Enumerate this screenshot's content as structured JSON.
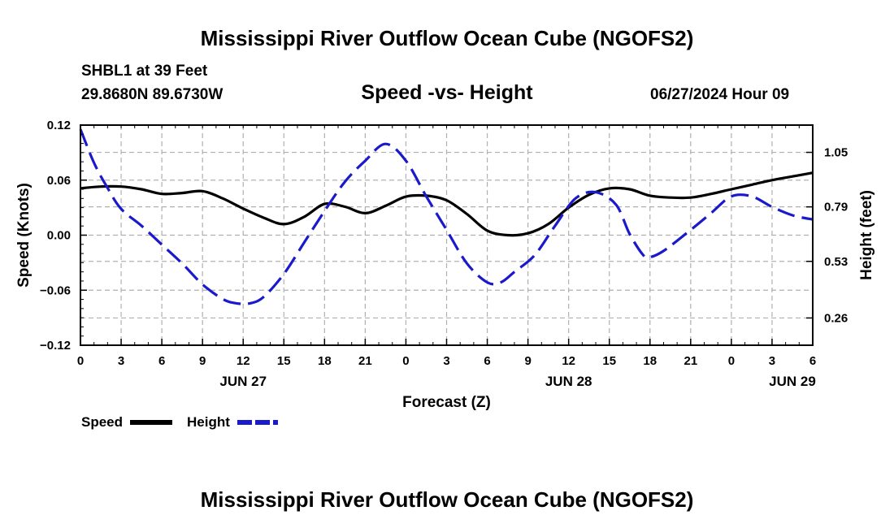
{
  "header": {
    "title": "Mississippi River Outflow Ocean Cube (NGOFS2)",
    "station": "SHBL1 at 39 Feet",
    "coords": "29.8680N  89.6730W",
    "date": "06/27/2024 Hour 09"
  },
  "footer": {
    "title": "Mississippi River Outflow Ocean Cube (NGOFS2)"
  },
  "colors": {
    "speed": "#000000",
    "height": "#1a1acc",
    "grid": "#b0b0b0"
  },
  "chart_data": {
    "type": "line",
    "title": "Speed -vs- Height",
    "xlabel": "Forecast (Z)",
    "ylabel": "Speed (Knots)",
    "y2label": "Height (feet)",
    "xlim": [
      0,
      54
    ],
    "ylim": [
      -0.12,
      0.12
    ],
    "y2lim": [
      0.13,
      1.18
    ],
    "x_ticks": [
      0,
      3,
      6,
      9,
      12,
      15,
      18,
      21,
      24,
      27,
      30,
      33,
      36,
      39,
      42,
      45,
      48,
      51,
      54
    ],
    "x_tick_labels": [
      "0",
      "3",
      "6",
      "9",
      "12",
      "15",
      "18",
      "21",
      "0",
      "3",
      "6",
      "9",
      "12",
      "15",
      "18",
      "21",
      "0",
      "3",
      "6"
    ],
    "day_labels": [
      {
        "x": 12,
        "label": "JUN 27"
      },
      {
        "x": 36,
        "label": "JUN 28"
      },
      {
        "x": 52.5,
        "label": "JUN 29"
      }
    ],
    "y_ticks": [
      -0.12,
      -0.06,
      0.0,
      0.06,
      0.12
    ],
    "y_tick_labels": [
      "−0.12",
      "−0.06",
      "0.00",
      "0.06",
      "0.12"
    ],
    "y2_ticks": [
      0.26,
      0.53,
      0.79,
      1.05
    ],
    "y2_tick_labels": [
      "0.26",
      "0.53",
      "0.79",
      "1.05"
    ],
    "grid": true,
    "legend": "bottom-left",
    "series": [
      {
        "name": "Speed",
        "axis": "left",
        "style": "solid",
        "x": [
          0,
          1.5,
          3,
          4.5,
          6,
          7.5,
          9,
          10.5,
          12,
          13.5,
          15,
          16.5,
          18,
          19.5,
          21,
          22.5,
          24,
          25.5,
          27,
          28.5,
          30,
          31.5,
          33,
          34.5,
          36,
          37.5,
          39,
          40.5,
          42,
          43.5,
          45,
          46.5,
          48,
          49.5,
          51,
          52.5,
          54
        ],
        "values": [
          0.051,
          0.053,
          0.053,
          0.05,
          0.045,
          0.046,
          0.048,
          0.04,
          0.029,
          0.019,
          0.012,
          0.02,
          0.034,
          0.031,
          0.024,
          0.032,
          0.042,
          0.043,
          0.038,
          0.023,
          0.005,
          0.0,
          0.002,
          0.012,
          0.03,
          0.044,
          0.051,
          0.05,
          0.043,
          0.041,
          0.041,
          0.045,
          0.05,
          0.055,
          0.06,
          0.064,
          0.068
        ]
      },
      {
        "name": "Height",
        "axis": "right",
        "style": "dashed",
        "x": [
          0,
          1,
          2,
          3,
          4.5,
          6,
          7.5,
          9,
          10.5,
          11.5,
          12.5,
          13.5,
          15,
          16.5,
          18,
          19.5,
          21,
          22.5,
          24,
          25.5,
          27,
          28.5,
          30,
          31,
          32,
          33.5,
          35,
          36.5,
          38,
          39.5,
          40.5,
          41.5,
          42,
          43,
          45,
          46.5,
          48,
          49.5,
          51,
          52.5,
          54
        ],
        "values": [
          1.16,
          1.0,
          0.88,
          0.78,
          0.7,
          0.61,
          0.52,
          0.42,
          0.35,
          0.33,
          0.33,
          0.36,
          0.47,
          0.62,
          0.77,
          0.91,
          1.01,
          1.09,
          1.01,
          0.84,
          0.68,
          0.52,
          0.43,
          0.43,
          0.48,
          0.56,
          0.7,
          0.83,
          0.86,
          0.8,
          0.66,
          0.56,
          0.55,
          0.58,
          0.68,
          0.76,
          0.84,
          0.84,
          0.79,
          0.75,
          0.73
        ]
      }
    ]
  }
}
